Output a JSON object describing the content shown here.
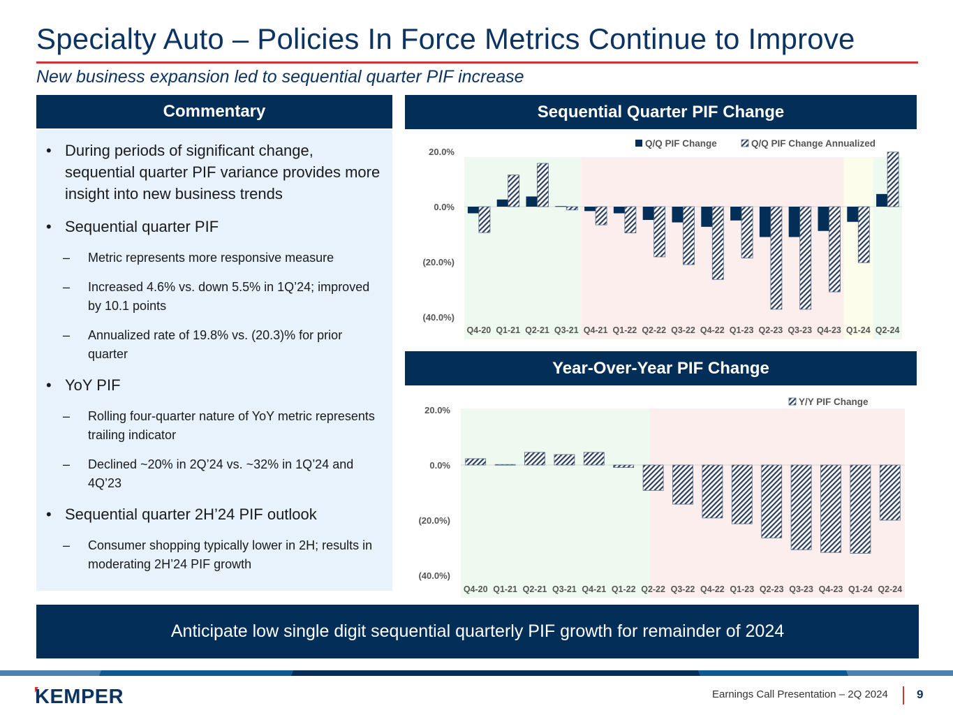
{
  "slide": {
    "title": "Specialty Auto – Policies In Force Metrics Continue to Improve",
    "subtitle": "New business expansion led to sequential quarter PIF increase",
    "callout": "Anticipate low single digit sequential quarterly PIF growth for remainder of 2024"
  },
  "colors": {
    "navy": "#032e57",
    "title_blue": "#0c3361",
    "accent_red": "#d2352f",
    "commentary_bg": "#e7f2fc",
    "shade_green": "#eefaef",
    "shade_red": "#fdeeee",
    "shade_yellow": "#fdfdec"
  },
  "commentary": {
    "header": "Commentary",
    "items": [
      {
        "level": 1,
        "marker": "•",
        "text": "During periods of significant change, sequential quarter PIF variance provides more insight into new business trends"
      },
      {
        "level": 1,
        "marker": "•",
        "text": "Sequential quarter PIF"
      },
      {
        "level": 2,
        "marker": "–",
        "text": "Metric represents more responsive measure"
      },
      {
        "level": 2,
        "marker": "–",
        "text": "Increased 4.6% vs. down 5.5% in 1Q’24; improved by 10.1 points"
      },
      {
        "level": 2,
        "marker": "–",
        "text": "Annualized rate of 19.8% vs. (20.3)% for prior quarter"
      },
      {
        "level": 1,
        "marker": "•",
        "text": "YoY PIF"
      },
      {
        "level": 2,
        "marker": "–",
        "text": "Rolling four-quarter nature of YoY metric represents trailing indicator"
      },
      {
        "level": 2,
        "marker": "–",
        "text": "Declined ~20% in 2Q’24 vs. ~32% in 1Q’24 and 4Q’23"
      },
      {
        "level": 1,
        "marker": "•",
        "text": "Sequential quarter 2H’24 PIF outlook"
      },
      {
        "level": 2,
        "marker": "–",
        "text": "Consumer shopping typically lower in 2H; results in moderating 2H’24 PIF growth"
      }
    ]
  },
  "footer": {
    "logo_text": "KEMPER",
    "presentation": "Earnings Call Presentation – 2Q 2024",
    "page_number": "9"
  },
  "chart_data": [
    {
      "type": "bar",
      "id": "qq",
      "header": "Sequential Quarter PIF Change",
      "title": "",
      "xlabel": "",
      "ylabel": "",
      "ylim": [
        -40,
        20
      ],
      "yticks": [
        20,
        0,
        -20,
        -40
      ],
      "ytick_labels": [
        "20.0%",
        "0.0%",
        "(20.0%)",
        "(40.0%)"
      ],
      "legend_position": "top-right",
      "grid": false,
      "categories": [
        "Q4-20",
        "Q1-21",
        "Q2-21",
        "Q3-21",
        "Q4-21",
        "Q1-22",
        "Q2-22",
        "Q3-22",
        "Q4-22",
        "Q1-23",
        "Q2-23",
        "Q3-23",
        "Q4-23",
        "Q1-24",
        "Q2-24"
      ],
      "series": [
        {
          "name": "Q/Q PIF Change",
          "style": "solid",
          "values": [
            -2.4,
            2.6,
            3.7,
            0.2,
            -1.6,
            -2.4,
            -4.8,
            -5.7,
            -7.3,
            -5.0,
            -11.0,
            -11.0,
            -8.8,
            -5.5,
            4.6
          ]
        },
        {
          "name": "Q/Q PIF Change Annualized",
          "style": "hatched",
          "values": [
            -9.4,
            11.5,
            15.7,
            -1.2,
            -6.6,
            -9.5,
            -18.2,
            -21.0,
            -26.4,
            -18.6,
            -37.2,
            -37.2,
            -30.9,
            -20.3,
            19.8
          ]
        }
      ],
      "background_regions": [
        {
          "from": "Q4-20",
          "to": "Q3-21",
          "color": "green"
        },
        {
          "from": "Q4-21",
          "to": "Q4-23",
          "color": "red"
        },
        {
          "from": "Q1-24",
          "to": "Q1-24",
          "color": "yellow"
        },
        {
          "from": "Q2-24",
          "to": "Q2-24",
          "color": "green"
        }
      ]
    },
    {
      "type": "bar",
      "id": "yy",
      "header": "Year-Over-Year PIF Change",
      "title": "",
      "xlabel": "",
      "ylabel": "",
      "ylim": [
        -40,
        20
      ],
      "yticks": [
        20,
        0,
        -20,
        -40
      ],
      "ytick_labels": [
        "20.0%",
        "0.0%",
        "(20.0%)",
        "(40.0%)"
      ],
      "legend_position": "top-right",
      "grid": false,
      "categories": [
        "Q4-20",
        "Q1-21",
        "Q2-21",
        "Q3-21",
        "Q4-21",
        "Q1-22",
        "Q2-22",
        "Q3-22",
        "Q4-22",
        "Q1-23",
        "Q2-23",
        "Q3-23",
        "Q4-23",
        "Q1-24",
        "Q2-24"
      ],
      "series": [
        {
          "name": "Y/Y PIF Change",
          "style": "hatched",
          "values": [
            2.3,
            0.2,
            4.6,
            3.8,
            4.6,
            -0.9,
            -9.2,
            -14.2,
            -19.2,
            -21.3,
            -26.4,
            -30.7,
            -31.7,
            -32.0,
            -20.0
          ]
        }
      ],
      "background_regions": [
        {
          "from": "Q4-20",
          "to": "Q1-22",
          "color": "green",
          "split": "mid-Q2-22"
        },
        {
          "from": "Q2-22",
          "to": "Q2-24",
          "color": "red"
        }
      ]
    }
  ]
}
